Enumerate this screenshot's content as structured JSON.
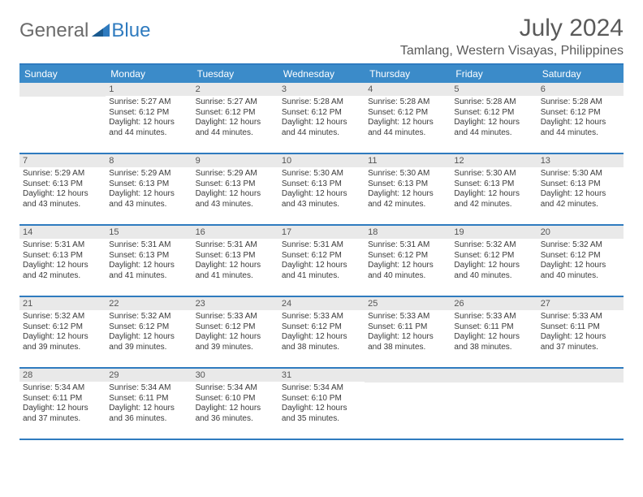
{
  "logo": {
    "general": "General",
    "blue": "Blue"
  },
  "title": {
    "month": "July 2024",
    "location": "Tamlang, Western Visayas, Philippines"
  },
  "colors": {
    "header_bg": "#3B8BC9",
    "border": "#2F7BBF",
    "daynum_bg": "#e9e9e9",
    "text": "#3a3a3a",
    "title_text": "#5a5a5a"
  },
  "weekdays": [
    "Sunday",
    "Monday",
    "Tuesday",
    "Wednesday",
    "Thursday",
    "Friday",
    "Saturday"
  ],
  "weeks": [
    [
      {
        "n": "",
        "sr": "",
        "ss": "",
        "dl": ""
      },
      {
        "n": "1",
        "sr": "Sunrise: 5:27 AM",
        "ss": "Sunset: 6:12 PM",
        "dl": "Daylight: 12 hours and 44 minutes."
      },
      {
        "n": "2",
        "sr": "Sunrise: 5:27 AM",
        "ss": "Sunset: 6:12 PM",
        "dl": "Daylight: 12 hours and 44 minutes."
      },
      {
        "n": "3",
        "sr": "Sunrise: 5:28 AM",
        "ss": "Sunset: 6:12 PM",
        "dl": "Daylight: 12 hours and 44 minutes."
      },
      {
        "n": "4",
        "sr": "Sunrise: 5:28 AM",
        "ss": "Sunset: 6:12 PM",
        "dl": "Daylight: 12 hours and 44 minutes."
      },
      {
        "n": "5",
        "sr": "Sunrise: 5:28 AM",
        "ss": "Sunset: 6:12 PM",
        "dl": "Daylight: 12 hours and 44 minutes."
      },
      {
        "n": "6",
        "sr": "Sunrise: 5:28 AM",
        "ss": "Sunset: 6:12 PM",
        "dl": "Daylight: 12 hours and 44 minutes."
      }
    ],
    [
      {
        "n": "7",
        "sr": "Sunrise: 5:29 AM",
        "ss": "Sunset: 6:13 PM",
        "dl": "Daylight: 12 hours and 43 minutes."
      },
      {
        "n": "8",
        "sr": "Sunrise: 5:29 AM",
        "ss": "Sunset: 6:13 PM",
        "dl": "Daylight: 12 hours and 43 minutes."
      },
      {
        "n": "9",
        "sr": "Sunrise: 5:29 AM",
        "ss": "Sunset: 6:13 PM",
        "dl": "Daylight: 12 hours and 43 minutes."
      },
      {
        "n": "10",
        "sr": "Sunrise: 5:30 AM",
        "ss": "Sunset: 6:13 PM",
        "dl": "Daylight: 12 hours and 43 minutes."
      },
      {
        "n": "11",
        "sr": "Sunrise: 5:30 AM",
        "ss": "Sunset: 6:13 PM",
        "dl": "Daylight: 12 hours and 42 minutes."
      },
      {
        "n": "12",
        "sr": "Sunrise: 5:30 AM",
        "ss": "Sunset: 6:13 PM",
        "dl": "Daylight: 12 hours and 42 minutes."
      },
      {
        "n": "13",
        "sr": "Sunrise: 5:30 AM",
        "ss": "Sunset: 6:13 PM",
        "dl": "Daylight: 12 hours and 42 minutes."
      }
    ],
    [
      {
        "n": "14",
        "sr": "Sunrise: 5:31 AM",
        "ss": "Sunset: 6:13 PM",
        "dl": "Daylight: 12 hours and 42 minutes."
      },
      {
        "n": "15",
        "sr": "Sunrise: 5:31 AM",
        "ss": "Sunset: 6:13 PM",
        "dl": "Daylight: 12 hours and 41 minutes."
      },
      {
        "n": "16",
        "sr": "Sunrise: 5:31 AM",
        "ss": "Sunset: 6:13 PM",
        "dl": "Daylight: 12 hours and 41 minutes."
      },
      {
        "n": "17",
        "sr": "Sunrise: 5:31 AM",
        "ss": "Sunset: 6:12 PM",
        "dl": "Daylight: 12 hours and 41 minutes."
      },
      {
        "n": "18",
        "sr": "Sunrise: 5:31 AM",
        "ss": "Sunset: 6:12 PM",
        "dl": "Daylight: 12 hours and 40 minutes."
      },
      {
        "n": "19",
        "sr": "Sunrise: 5:32 AM",
        "ss": "Sunset: 6:12 PM",
        "dl": "Daylight: 12 hours and 40 minutes."
      },
      {
        "n": "20",
        "sr": "Sunrise: 5:32 AM",
        "ss": "Sunset: 6:12 PM",
        "dl": "Daylight: 12 hours and 40 minutes."
      }
    ],
    [
      {
        "n": "21",
        "sr": "Sunrise: 5:32 AM",
        "ss": "Sunset: 6:12 PM",
        "dl": "Daylight: 12 hours and 39 minutes."
      },
      {
        "n": "22",
        "sr": "Sunrise: 5:32 AM",
        "ss": "Sunset: 6:12 PM",
        "dl": "Daylight: 12 hours and 39 minutes."
      },
      {
        "n": "23",
        "sr": "Sunrise: 5:33 AM",
        "ss": "Sunset: 6:12 PM",
        "dl": "Daylight: 12 hours and 39 minutes."
      },
      {
        "n": "24",
        "sr": "Sunrise: 5:33 AM",
        "ss": "Sunset: 6:12 PM",
        "dl": "Daylight: 12 hours and 38 minutes."
      },
      {
        "n": "25",
        "sr": "Sunrise: 5:33 AM",
        "ss": "Sunset: 6:11 PM",
        "dl": "Daylight: 12 hours and 38 minutes."
      },
      {
        "n": "26",
        "sr": "Sunrise: 5:33 AM",
        "ss": "Sunset: 6:11 PM",
        "dl": "Daylight: 12 hours and 38 minutes."
      },
      {
        "n": "27",
        "sr": "Sunrise: 5:33 AM",
        "ss": "Sunset: 6:11 PM",
        "dl": "Daylight: 12 hours and 37 minutes."
      }
    ],
    [
      {
        "n": "28",
        "sr": "Sunrise: 5:34 AM",
        "ss": "Sunset: 6:11 PM",
        "dl": "Daylight: 12 hours and 37 minutes."
      },
      {
        "n": "29",
        "sr": "Sunrise: 5:34 AM",
        "ss": "Sunset: 6:11 PM",
        "dl": "Daylight: 12 hours and 36 minutes."
      },
      {
        "n": "30",
        "sr": "Sunrise: 5:34 AM",
        "ss": "Sunset: 6:10 PM",
        "dl": "Daylight: 12 hours and 36 minutes."
      },
      {
        "n": "31",
        "sr": "Sunrise: 5:34 AM",
        "ss": "Sunset: 6:10 PM",
        "dl": "Daylight: 12 hours and 35 minutes."
      },
      {
        "n": "",
        "sr": "",
        "ss": "",
        "dl": ""
      },
      {
        "n": "",
        "sr": "",
        "ss": "",
        "dl": ""
      },
      {
        "n": "",
        "sr": "",
        "ss": "",
        "dl": ""
      }
    ]
  ]
}
